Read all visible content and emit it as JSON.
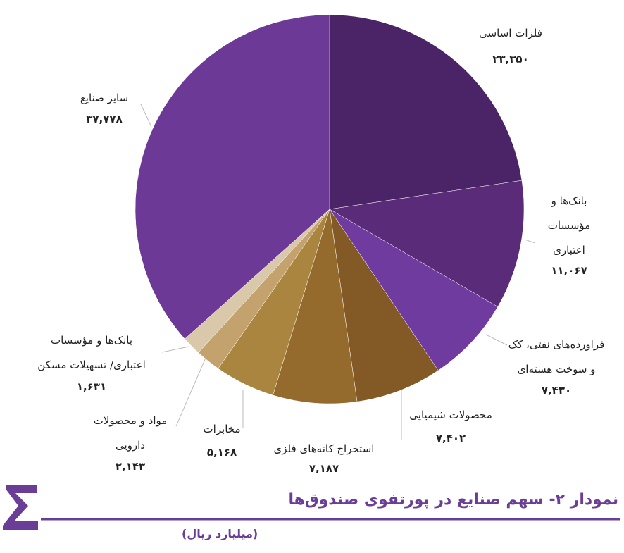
{
  "chart_data": {
    "type": "pie",
    "title": "نمودار ۲- سهم صنایع در پورتفوی صندوق‌ها",
    "subtitle": "(میلیارد ریال)",
    "categories": [
      "فلزات اساسی",
      "بانک‌ها و\nمؤسسات\nاعتباری",
      "فراورده‌های نفتی، کک\nو سوخت هسته‌ای",
      "محصولات شیمیایی",
      "استخراج کانه‌های فلزی",
      "مخابرات",
      "مواد و محصولات\nدارویی",
      "بانک‌ها و مؤسسات\nاعتباری/ تسهیلات مسکن",
      "سایر صنایع"
    ],
    "values": [
      23350,
      11067,
      7430,
      7402,
      7187,
      5168,
      2143,
      1631,
      37778
    ],
    "value_labels": [
      "۲۳,۳۵۰",
      "۱۱,۰۶۷",
      "۷,۴۳۰",
      "۷,۴۰۲",
      "۷,۱۸۷",
      "۵,۱۶۸",
      "۲,۱۴۳",
      "۱,۶۳۱",
      "۳۷,۷۷۸"
    ],
    "colors": [
      "#4a2466",
      "#5a2b78",
      "#6f3b9e",
      "#835a26",
      "#946b2d",
      "#aa853f",
      "#c3a26e",
      "#dac8aa",
      "#6c3a96"
    ]
  }
}
